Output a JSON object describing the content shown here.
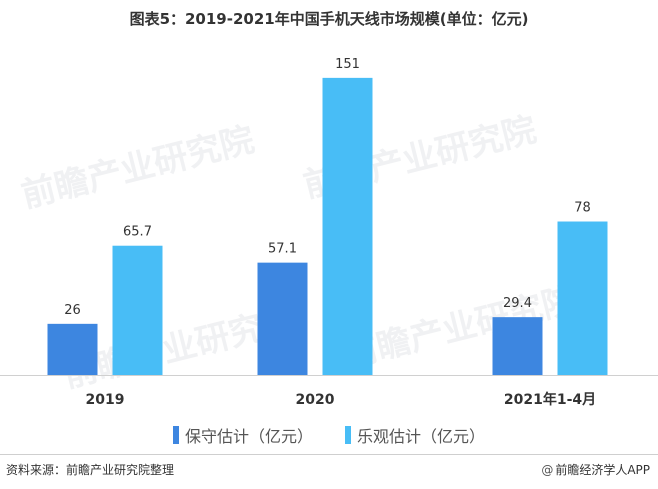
{
  "header": {
    "title": "图表5：2019-2021年中国手机天线市场规模(单位：亿元)"
  },
  "chart_data": {
    "type": "bar",
    "title": "图表5：2019-2021年中国手机天线市场规模(单位：亿元)",
    "categories": [
      "2019",
      "2020",
      "2021年1-4月"
    ],
    "series": [
      {
        "name": "保守估计（亿元）",
        "values": [
          26,
          57.1,
          29.4
        ],
        "color": "#3d86e0"
      },
      {
        "name": "乐观估计（亿元）",
        "values": [
          65.7,
          151,
          78
        ],
        "color": "#48bdf6"
      }
    ],
    "value_labels": [
      [
        "26",
        "57.1",
        "29.4"
      ],
      [
        "65.7",
        "151",
        "78"
      ]
    ],
    "ylim": [
      0,
      155
    ],
    "grid": false,
    "legend_position": "bottom"
  },
  "legend": [
    {
      "label": "保守估计（亿元）",
      "color": "#3d86e0"
    },
    {
      "label": "乐观估计（亿元）",
      "color": "#48bdf6"
    }
  ],
  "watermark": {
    "text": "前瞻产业研究院"
  },
  "footer": {
    "source": "资料来源：前瞻产业研究院整理",
    "brand_icon": "@",
    "brand": "前瞻经济学人APP"
  }
}
